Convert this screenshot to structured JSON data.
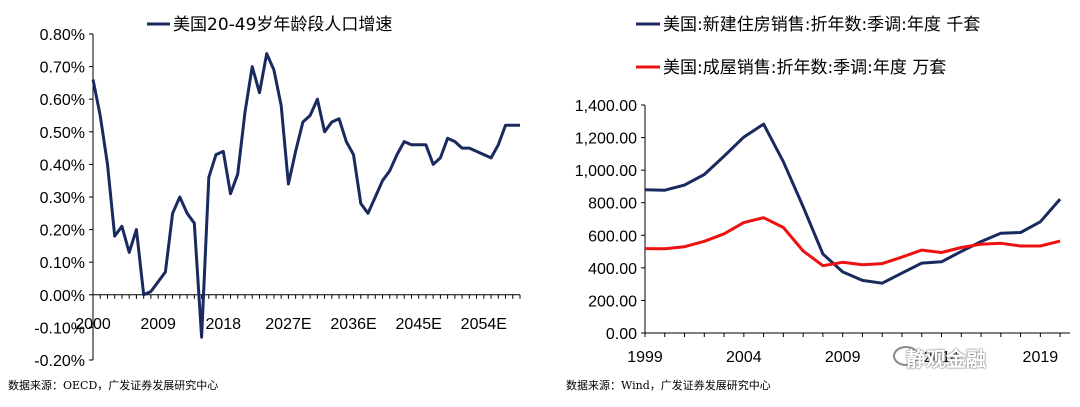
{
  "chart_data": [
    {
      "type": "line",
      "title": "",
      "series": [
        {
          "name": "美国20-49岁年龄段人口增速",
          "color": "#1a2a5e",
          "x": [
            2000,
            2001,
            2002,
            2003,
            2004,
            2005,
            2006,
            2007,
            2008,
            2009,
            2010,
            2011,
            2012,
            2013,
            2014,
            2015,
            2016,
            2017,
            2018,
            2019,
            2020,
            2021,
            2022,
            2023,
            2024,
            2025,
            2026,
            2027,
            2028,
            2029,
            2030,
            2031,
            2032,
            2033,
            2034,
            2035,
            2036,
            2037,
            2038,
            2039,
            2040,
            2041,
            2042,
            2043,
            2044,
            2045,
            2046,
            2047,
            2048,
            2049,
            2050,
            2051,
            2052,
            2053,
            2054,
            2055,
            2056,
            2057,
            2058,
            2059
          ],
          "values": [
            0.66,
            0.55,
            0.4,
            0.18,
            0.21,
            0.13,
            0.2,
            0.0,
            0.01,
            0.04,
            0.07,
            0.25,
            0.3,
            0.25,
            0.22,
            -0.13,
            0.36,
            0.43,
            0.44,
            0.31,
            0.37,
            0.56,
            0.7,
            0.62,
            0.74,
            0.69,
            0.58,
            0.34,
            0.44,
            0.53,
            0.55,
            0.6,
            0.5,
            0.53,
            0.54,
            0.47,
            0.43,
            0.28,
            0.25,
            0.3,
            0.35,
            0.38,
            0.43,
            0.47,
            0.46,
            0.46,
            0.46,
            0.4,
            0.42,
            0.48,
            0.47,
            0.45,
            0.45,
            0.44,
            0.43,
            0.42,
            0.46,
            0.52,
            0.52,
            0.52
          ]
        }
      ],
      "x_tick_labels": [
        "2000",
        "2009",
        "2018",
        "2027E",
        "2036E",
        "2045E",
        "2054E"
      ],
      "y_tick_labels": [
        "0.80%",
        "0.70%",
        "0.60%",
        "0.50%",
        "0.40%",
        "0.30%",
        "0.20%",
        "0.10%",
        "0.00%",
        "-0.10%",
        "-0.20%"
      ],
      "ylim": [
        -0.2,
        0.8
      ],
      "xlabel": "",
      "ylabel": "",
      "grid": false,
      "legend_position": "top-left"
    },
    {
      "type": "line",
      "title": "",
      "series": [
        {
          "name": "美国:新建住房销售:折年数:季调:年度 千套",
          "color": "#1a2a5e",
          "x": [
            1999,
            2000,
            2001,
            2002,
            2003,
            2004,
            2005,
            2006,
            2007,
            2008,
            2009,
            2010,
            2011,
            2012,
            2013,
            2014,
            2015,
            2016,
            2017,
            2018,
            2019,
            2020
          ],
          "values": [
            880,
            877,
            908,
            973,
            1086,
            1203,
            1283,
            1051,
            776,
            485,
            375,
            323,
            306,
            368,
            429,
            437,
            501,
            561,
            613,
            617,
            683,
            822
          ]
        },
        {
          "name": "美国:成屋销售:折年数:季调:年度 万套",
          "color": "#ee1111",
          "x": [
            1999,
            2000,
            2001,
            2002,
            2003,
            2004,
            2005,
            2006,
            2007,
            2008,
            2009,
            2010,
            2011,
            2012,
            2013,
            2014,
            2015,
            2016,
            2017,
            2018,
            2019,
            2020
          ],
          "values": [
            518,
            517,
            530,
            563,
            609,
            678,
            708,
            648,
            504,
            413,
            434,
            419,
            426,
            466,
            509,
            494,
            525,
            545,
            551,
            534,
            534,
            564
          ]
        }
      ],
      "x_tick_labels": [
        "1999",
        "2004",
        "2009",
        "2014",
        "2019"
      ],
      "y_tick_labels": [
        "1,400.00",
        "1,200.00",
        "1,000.00",
        "800.00",
        "600.00",
        "400.00",
        "200.00",
        "0.00"
      ],
      "ylim": [
        0,
        1400
      ],
      "xlabel": "",
      "ylabel": "",
      "grid": false,
      "legend_position": "top"
    }
  ],
  "sources": {
    "left": "数据来源：OECD，广发证券发展研究中心",
    "right": "数据来源：Wind，广发证券发展研究中心"
  },
  "watermark": "静观金融"
}
